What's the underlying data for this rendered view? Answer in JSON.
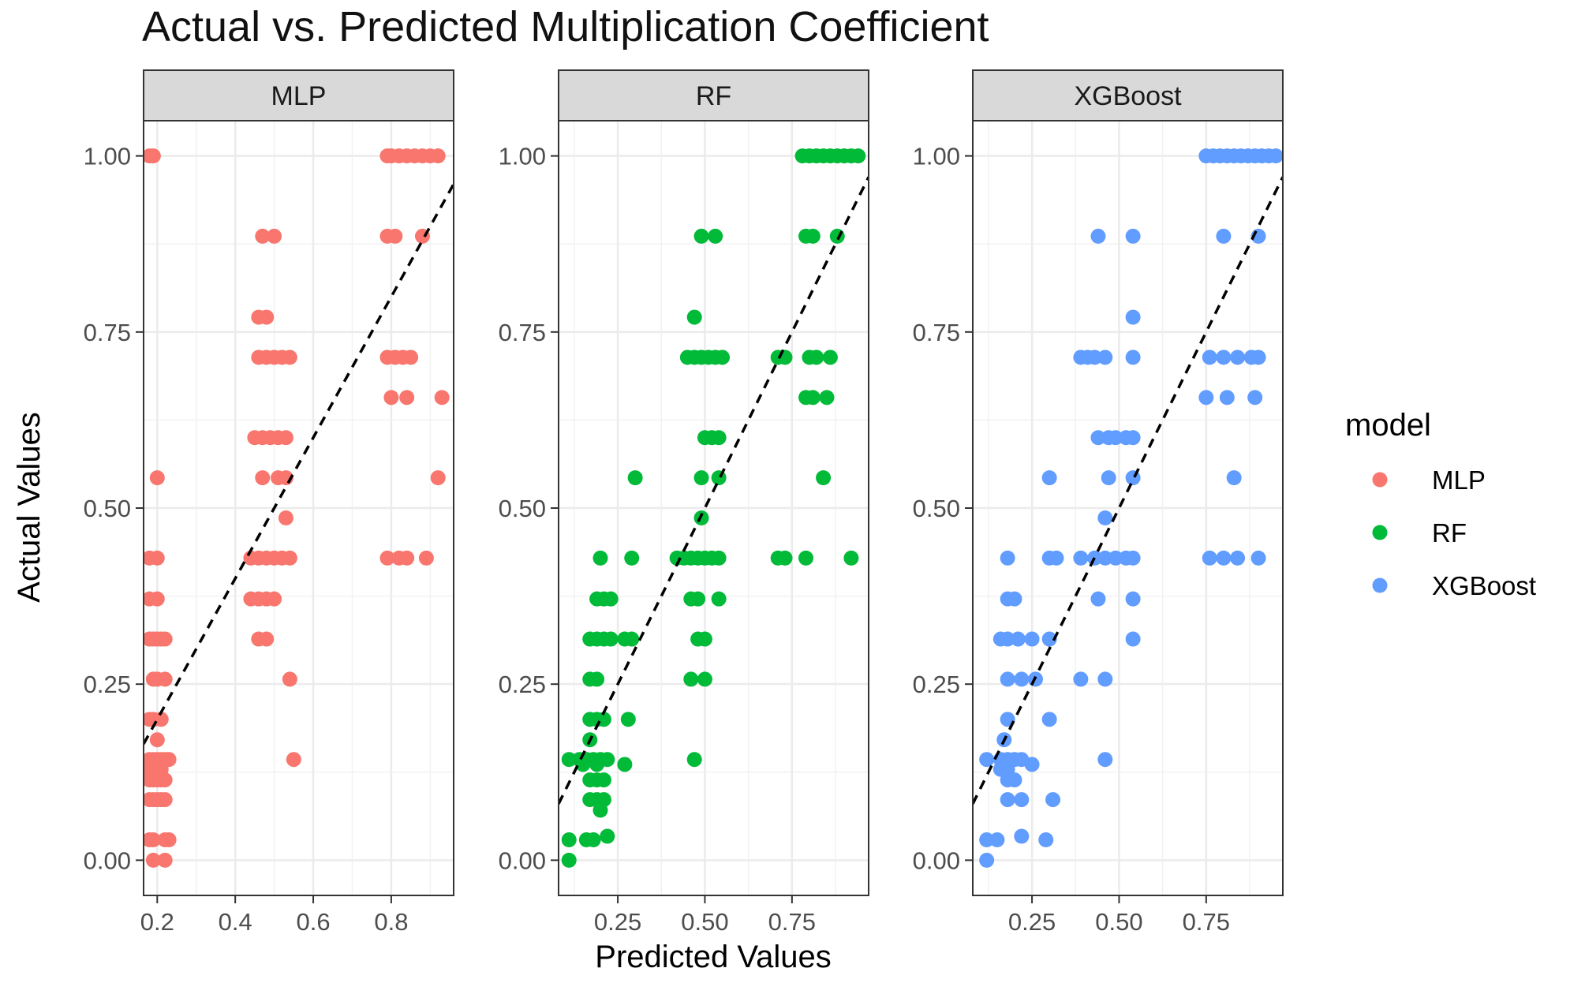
{
  "chart_data": {
    "type": "scatter",
    "title": "Actual vs. Predicted Multiplication Coefficient",
    "xlabel": "Predicted Values",
    "ylabel": "Actual Values",
    "ylim": [
      -0.05,
      1.05
    ],
    "yticks": [
      0,
      0.25,
      0.5,
      0.75,
      1.0
    ],
    "ytick_labels": [
      "0.00",
      "0.25",
      "0.50",
      "0.75",
      "1.00"
    ],
    "legend": {
      "title": "model",
      "position": "right",
      "entries": [
        {
          "label": "MLP",
          "color": "#F8766D"
        },
        {
          "label": "RF",
          "color": "#00BA38"
        },
        {
          "label": "XGBoost",
          "color": "#619CFF"
        }
      ]
    },
    "reference_line": {
      "style": "dashed",
      "slope": 1,
      "intercept": 0,
      "color": "#000000"
    },
    "panels": [
      {
        "name": "MLP",
        "color": "#F8766D",
        "xlim": [
          0.165,
          0.96
        ],
        "xticks": [
          0.2,
          0.4,
          0.6,
          0.8
        ],
        "xtick_labels": [
          "0.2",
          "0.4",
          "0.6",
          "0.8"
        ],
        "points": [
          [
            0.18,
            1.0
          ],
          [
            0.19,
            1.0
          ],
          [
            0.79,
            1.0
          ],
          [
            0.8,
            1.0
          ],
          [
            0.82,
            1.0
          ],
          [
            0.84,
            1.0
          ],
          [
            0.86,
            1.0
          ],
          [
            0.88,
            1.0
          ],
          [
            0.9,
            1.0
          ],
          [
            0.92,
            1.0
          ],
          [
            0.47,
            0.886
          ],
          [
            0.5,
            0.886
          ],
          [
            0.79,
            0.886
          ],
          [
            0.81,
            0.886
          ],
          [
            0.88,
            0.886
          ],
          [
            0.46,
            0.771
          ],
          [
            0.48,
            0.771
          ],
          [
            0.46,
            0.714
          ],
          [
            0.48,
            0.714
          ],
          [
            0.5,
            0.714
          ],
          [
            0.52,
            0.714
          ],
          [
            0.54,
            0.714
          ],
          [
            0.79,
            0.714
          ],
          [
            0.81,
            0.714
          ],
          [
            0.83,
            0.714
          ],
          [
            0.85,
            0.714
          ],
          [
            0.8,
            0.657
          ],
          [
            0.84,
            0.657
          ],
          [
            0.93,
            0.657
          ],
          [
            0.45,
            0.6
          ],
          [
            0.47,
            0.6
          ],
          [
            0.49,
            0.6
          ],
          [
            0.51,
            0.6
          ],
          [
            0.53,
            0.6
          ],
          [
            0.47,
            0.543
          ],
          [
            0.51,
            0.543
          ],
          [
            0.53,
            0.543
          ],
          [
            0.92,
            0.543
          ],
          [
            0.2,
            0.543
          ],
          [
            0.53,
            0.486
          ],
          [
            0.18,
            0.429
          ],
          [
            0.2,
            0.429
          ],
          [
            0.44,
            0.429
          ],
          [
            0.46,
            0.429
          ],
          [
            0.48,
            0.429
          ],
          [
            0.5,
            0.429
          ],
          [
            0.52,
            0.429
          ],
          [
            0.54,
            0.429
          ],
          [
            0.79,
            0.429
          ],
          [
            0.82,
            0.429
          ],
          [
            0.84,
            0.429
          ],
          [
            0.89,
            0.429
          ],
          [
            0.18,
            0.371
          ],
          [
            0.2,
            0.371
          ],
          [
            0.44,
            0.371
          ],
          [
            0.46,
            0.371
          ],
          [
            0.48,
            0.371
          ],
          [
            0.5,
            0.371
          ],
          [
            0.18,
            0.314
          ],
          [
            0.19,
            0.314
          ],
          [
            0.2,
            0.314
          ],
          [
            0.21,
            0.314
          ],
          [
            0.22,
            0.314
          ],
          [
            0.46,
            0.314
          ],
          [
            0.48,
            0.314
          ],
          [
            0.19,
            0.257
          ],
          [
            0.2,
            0.257
          ],
          [
            0.22,
            0.257
          ],
          [
            0.54,
            0.257
          ],
          [
            0.18,
            0.2
          ],
          [
            0.19,
            0.2
          ],
          [
            0.21,
            0.2
          ],
          [
            0.2,
            0.171
          ],
          [
            0.18,
            0.143
          ],
          [
            0.19,
            0.143
          ],
          [
            0.2,
            0.143
          ],
          [
            0.21,
            0.143
          ],
          [
            0.22,
            0.143
          ],
          [
            0.23,
            0.143
          ],
          [
            0.55,
            0.143
          ],
          [
            0.18,
            0.129
          ],
          [
            0.19,
            0.129
          ],
          [
            0.2,
            0.129
          ],
          [
            0.21,
            0.129
          ],
          [
            0.18,
            0.114
          ],
          [
            0.19,
            0.114
          ],
          [
            0.2,
            0.114
          ],
          [
            0.21,
            0.114
          ],
          [
            0.22,
            0.114
          ],
          [
            0.18,
            0.086
          ],
          [
            0.19,
            0.086
          ],
          [
            0.2,
            0.086
          ],
          [
            0.21,
            0.086
          ],
          [
            0.22,
            0.086
          ],
          [
            0.18,
            0.029
          ],
          [
            0.19,
            0.029
          ],
          [
            0.22,
            0.029
          ],
          [
            0.23,
            0.029
          ],
          [
            0.19,
            0.0
          ],
          [
            0.22,
            0.0
          ]
        ]
      },
      {
        "name": "RF",
        "color": "#00BA38",
        "xlim": [
          0.08,
          0.97
        ],
        "xticks": [
          0.25,
          0.5,
          0.75
        ],
        "xtick_labels": [
          "0.25",
          "0.50",
          "0.75"
        ],
        "points": [
          [
            0.78,
            1.0
          ],
          [
            0.8,
            1.0
          ],
          [
            0.82,
            1.0
          ],
          [
            0.84,
            1.0
          ],
          [
            0.86,
            1.0
          ],
          [
            0.88,
            1.0
          ],
          [
            0.9,
            1.0
          ],
          [
            0.92,
            1.0
          ],
          [
            0.94,
            1.0
          ],
          [
            0.49,
            0.886
          ],
          [
            0.53,
            0.886
          ],
          [
            0.79,
            0.886
          ],
          [
            0.81,
            0.886
          ],
          [
            0.88,
            0.886
          ],
          [
            0.47,
            0.771
          ],
          [
            0.45,
            0.714
          ],
          [
            0.47,
            0.714
          ],
          [
            0.49,
            0.714
          ],
          [
            0.51,
            0.714
          ],
          [
            0.53,
            0.714
          ],
          [
            0.55,
            0.714
          ],
          [
            0.71,
            0.714
          ],
          [
            0.73,
            0.714
          ],
          [
            0.8,
            0.714
          ],
          [
            0.82,
            0.714
          ],
          [
            0.86,
            0.714
          ],
          [
            0.79,
            0.657
          ],
          [
            0.81,
            0.657
          ],
          [
            0.85,
            0.657
          ],
          [
            0.5,
            0.6
          ],
          [
            0.52,
            0.6
          ],
          [
            0.54,
            0.6
          ],
          [
            0.3,
            0.543
          ],
          [
            0.49,
            0.543
          ],
          [
            0.54,
            0.543
          ],
          [
            0.84,
            0.543
          ],
          [
            0.49,
            0.486
          ],
          [
            0.2,
            0.429
          ],
          [
            0.29,
            0.429
          ],
          [
            0.42,
            0.429
          ],
          [
            0.44,
            0.429
          ],
          [
            0.46,
            0.429
          ],
          [
            0.48,
            0.429
          ],
          [
            0.5,
            0.429
          ],
          [
            0.52,
            0.429
          ],
          [
            0.54,
            0.429
          ],
          [
            0.71,
            0.429
          ],
          [
            0.73,
            0.429
          ],
          [
            0.79,
            0.429
          ],
          [
            0.92,
            0.429
          ],
          [
            0.19,
            0.371
          ],
          [
            0.21,
            0.371
          ],
          [
            0.23,
            0.371
          ],
          [
            0.46,
            0.371
          ],
          [
            0.48,
            0.371
          ],
          [
            0.54,
            0.371
          ],
          [
            0.17,
            0.314
          ],
          [
            0.19,
            0.314
          ],
          [
            0.21,
            0.314
          ],
          [
            0.23,
            0.314
          ],
          [
            0.27,
            0.314
          ],
          [
            0.29,
            0.314
          ],
          [
            0.48,
            0.314
          ],
          [
            0.5,
            0.314
          ],
          [
            0.17,
            0.257
          ],
          [
            0.19,
            0.257
          ],
          [
            0.46,
            0.257
          ],
          [
            0.5,
            0.257
          ],
          [
            0.17,
            0.2
          ],
          [
            0.19,
            0.2
          ],
          [
            0.21,
            0.2
          ],
          [
            0.28,
            0.2
          ],
          [
            0.17,
            0.171
          ],
          [
            0.11,
            0.143
          ],
          [
            0.14,
            0.143
          ],
          [
            0.16,
            0.143
          ],
          [
            0.18,
            0.143
          ],
          [
            0.2,
            0.143
          ],
          [
            0.22,
            0.143
          ],
          [
            0.47,
            0.143
          ],
          [
            0.15,
            0.136
          ],
          [
            0.19,
            0.136
          ],
          [
            0.27,
            0.136
          ],
          [
            0.17,
            0.114
          ],
          [
            0.19,
            0.114
          ],
          [
            0.21,
            0.114
          ],
          [
            0.17,
            0.086
          ],
          [
            0.19,
            0.086
          ],
          [
            0.21,
            0.086
          ],
          [
            0.2,
            0.071
          ],
          [
            0.11,
            0.029
          ],
          [
            0.16,
            0.029
          ],
          [
            0.18,
            0.029
          ],
          [
            0.22,
            0.034
          ],
          [
            0.11,
            0.0
          ]
        ]
      },
      {
        "name": "XGBoost",
        "color": "#619CFF",
        "xlim": [
          0.08,
          0.97
        ],
        "xticks": [
          0.25,
          0.5,
          0.75
        ],
        "xtick_labels": [
          "0.25",
          "0.50",
          "0.75"
        ],
        "points": [
          [
            0.75,
            1.0
          ],
          [
            0.77,
            1.0
          ],
          [
            0.79,
            1.0
          ],
          [
            0.81,
            1.0
          ],
          [
            0.83,
            1.0
          ],
          [
            0.85,
            1.0
          ],
          [
            0.87,
            1.0
          ],
          [
            0.89,
            1.0
          ],
          [
            0.91,
            1.0
          ],
          [
            0.93,
            1.0
          ],
          [
            0.95,
            1.0
          ],
          [
            0.44,
            0.886
          ],
          [
            0.54,
            0.886
          ],
          [
            0.8,
            0.886
          ],
          [
            0.9,
            0.886
          ],
          [
            0.54,
            0.771
          ],
          [
            0.39,
            0.714
          ],
          [
            0.41,
            0.714
          ],
          [
            0.43,
            0.714
          ],
          [
            0.46,
            0.714
          ],
          [
            0.54,
            0.714
          ],
          [
            0.76,
            0.714
          ],
          [
            0.8,
            0.714
          ],
          [
            0.84,
            0.714
          ],
          [
            0.88,
            0.714
          ],
          [
            0.9,
            0.714
          ],
          [
            0.75,
            0.657
          ],
          [
            0.81,
            0.657
          ],
          [
            0.89,
            0.657
          ],
          [
            0.44,
            0.6
          ],
          [
            0.47,
            0.6
          ],
          [
            0.49,
            0.6
          ],
          [
            0.52,
            0.6
          ],
          [
            0.54,
            0.6
          ],
          [
            0.3,
            0.543
          ],
          [
            0.47,
            0.543
          ],
          [
            0.54,
            0.543
          ],
          [
            0.83,
            0.543
          ],
          [
            0.46,
            0.486
          ],
          [
            0.18,
            0.429
          ],
          [
            0.3,
            0.429
          ],
          [
            0.32,
            0.429
          ],
          [
            0.39,
            0.429
          ],
          [
            0.43,
            0.429
          ],
          [
            0.46,
            0.429
          ],
          [
            0.49,
            0.429
          ],
          [
            0.52,
            0.429
          ],
          [
            0.54,
            0.429
          ],
          [
            0.76,
            0.429
          ],
          [
            0.8,
            0.429
          ],
          [
            0.84,
            0.429
          ],
          [
            0.9,
            0.429
          ],
          [
            0.18,
            0.371
          ],
          [
            0.2,
            0.371
          ],
          [
            0.44,
            0.371
          ],
          [
            0.54,
            0.371
          ],
          [
            0.16,
            0.314
          ],
          [
            0.18,
            0.314
          ],
          [
            0.21,
            0.314
          ],
          [
            0.25,
            0.314
          ],
          [
            0.3,
            0.314
          ],
          [
            0.54,
            0.314
          ],
          [
            0.18,
            0.257
          ],
          [
            0.22,
            0.257
          ],
          [
            0.26,
            0.257
          ],
          [
            0.39,
            0.257
          ],
          [
            0.46,
            0.257
          ],
          [
            0.18,
            0.2
          ],
          [
            0.3,
            0.2
          ],
          [
            0.17,
            0.171
          ],
          [
            0.12,
            0.143
          ],
          [
            0.16,
            0.143
          ],
          [
            0.18,
            0.143
          ],
          [
            0.2,
            0.143
          ],
          [
            0.22,
            0.143
          ],
          [
            0.46,
            0.143
          ],
          [
            0.16,
            0.129
          ],
          [
            0.18,
            0.129
          ],
          [
            0.25,
            0.136
          ],
          [
            0.18,
            0.114
          ],
          [
            0.2,
            0.114
          ],
          [
            0.18,
            0.086
          ],
          [
            0.22,
            0.086
          ],
          [
            0.31,
            0.086
          ],
          [
            0.12,
            0.029
          ],
          [
            0.15,
            0.029
          ],
          [
            0.22,
            0.034
          ],
          [
            0.29,
            0.029
          ],
          [
            0.12,
            0.0
          ]
        ]
      }
    ]
  }
}
